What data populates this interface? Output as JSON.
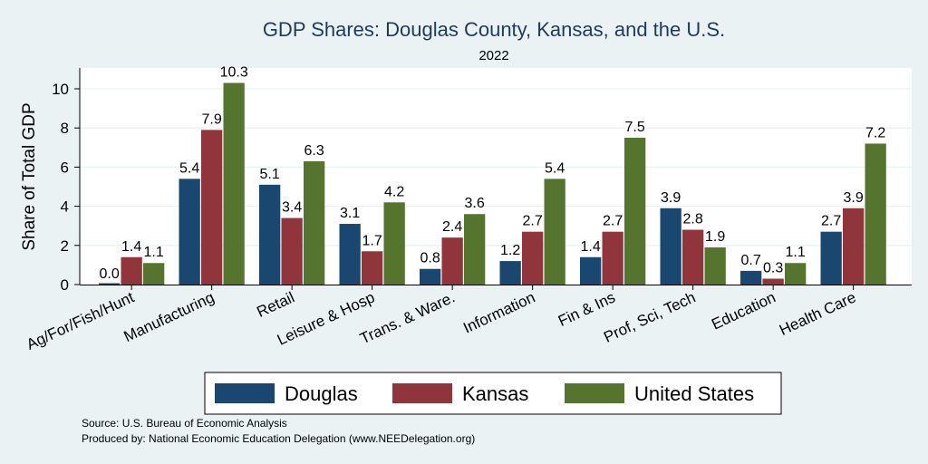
{
  "chart_data": {
    "type": "bar",
    "title": "GDP Shares: Douglas County, Kansas, and the U.S.",
    "subtitle": "2022",
    "ylabel": "Share of Total GDP",
    "xlabel": "",
    "ylim": [
      0,
      11
    ],
    "yticks": [
      0,
      2,
      4,
      6,
      8,
      10
    ],
    "grid": true,
    "legend_position": "bottom",
    "categories": [
      "Ag/For/Fish/Hunt",
      "Manufacturing",
      "Retail",
      "Leisure & Hosp",
      "Trans. & Ware.",
      "Information",
      "Fin & Ins",
      "Prof, Sci, Tech",
      "Education",
      "Health Care"
    ],
    "series": [
      {
        "name": "Douglas",
        "color": "#1a476f",
        "values": [
          0.0,
          5.4,
          5.1,
          3.1,
          0.8,
          1.2,
          1.4,
          3.9,
          0.7,
          2.7
        ],
        "labels": [
          "0.0",
          "5.4",
          "5.1",
          "3.1",
          "0.8",
          "1.2",
          "1.4",
          "3.9",
          "0.7",
          "2.7"
        ]
      },
      {
        "name": "Kansas",
        "color": "#90353b",
        "values": [
          1.4,
          7.9,
          3.4,
          1.7,
          2.4,
          2.7,
          2.7,
          2.8,
          0.3,
          3.9
        ],
        "labels": [
          "1.4",
          "7.9",
          "3.4",
          "1.7",
          "2.4",
          "2.7",
          "2.7",
          "2.8",
          "0.3",
          "3.9"
        ]
      },
      {
        "name": "United States",
        "color": "#55752f",
        "values": [
          1.1,
          10.3,
          6.3,
          4.2,
          3.6,
          5.4,
          7.5,
          1.9,
          1.1,
          7.2
        ],
        "labels": [
          "1.1",
          "10.3",
          "6.3",
          "4.2",
          "3.6",
          "5.4",
          "7.5",
          "1.9",
          "1.1",
          "7.2"
        ]
      }
    ],
    "notes": [
      "Source: U.S. Bureau of Economic Analysis",
      "Produced by: National Economic Education Delegation (www.NEEDelegation.org)"
    ]
  }
}
